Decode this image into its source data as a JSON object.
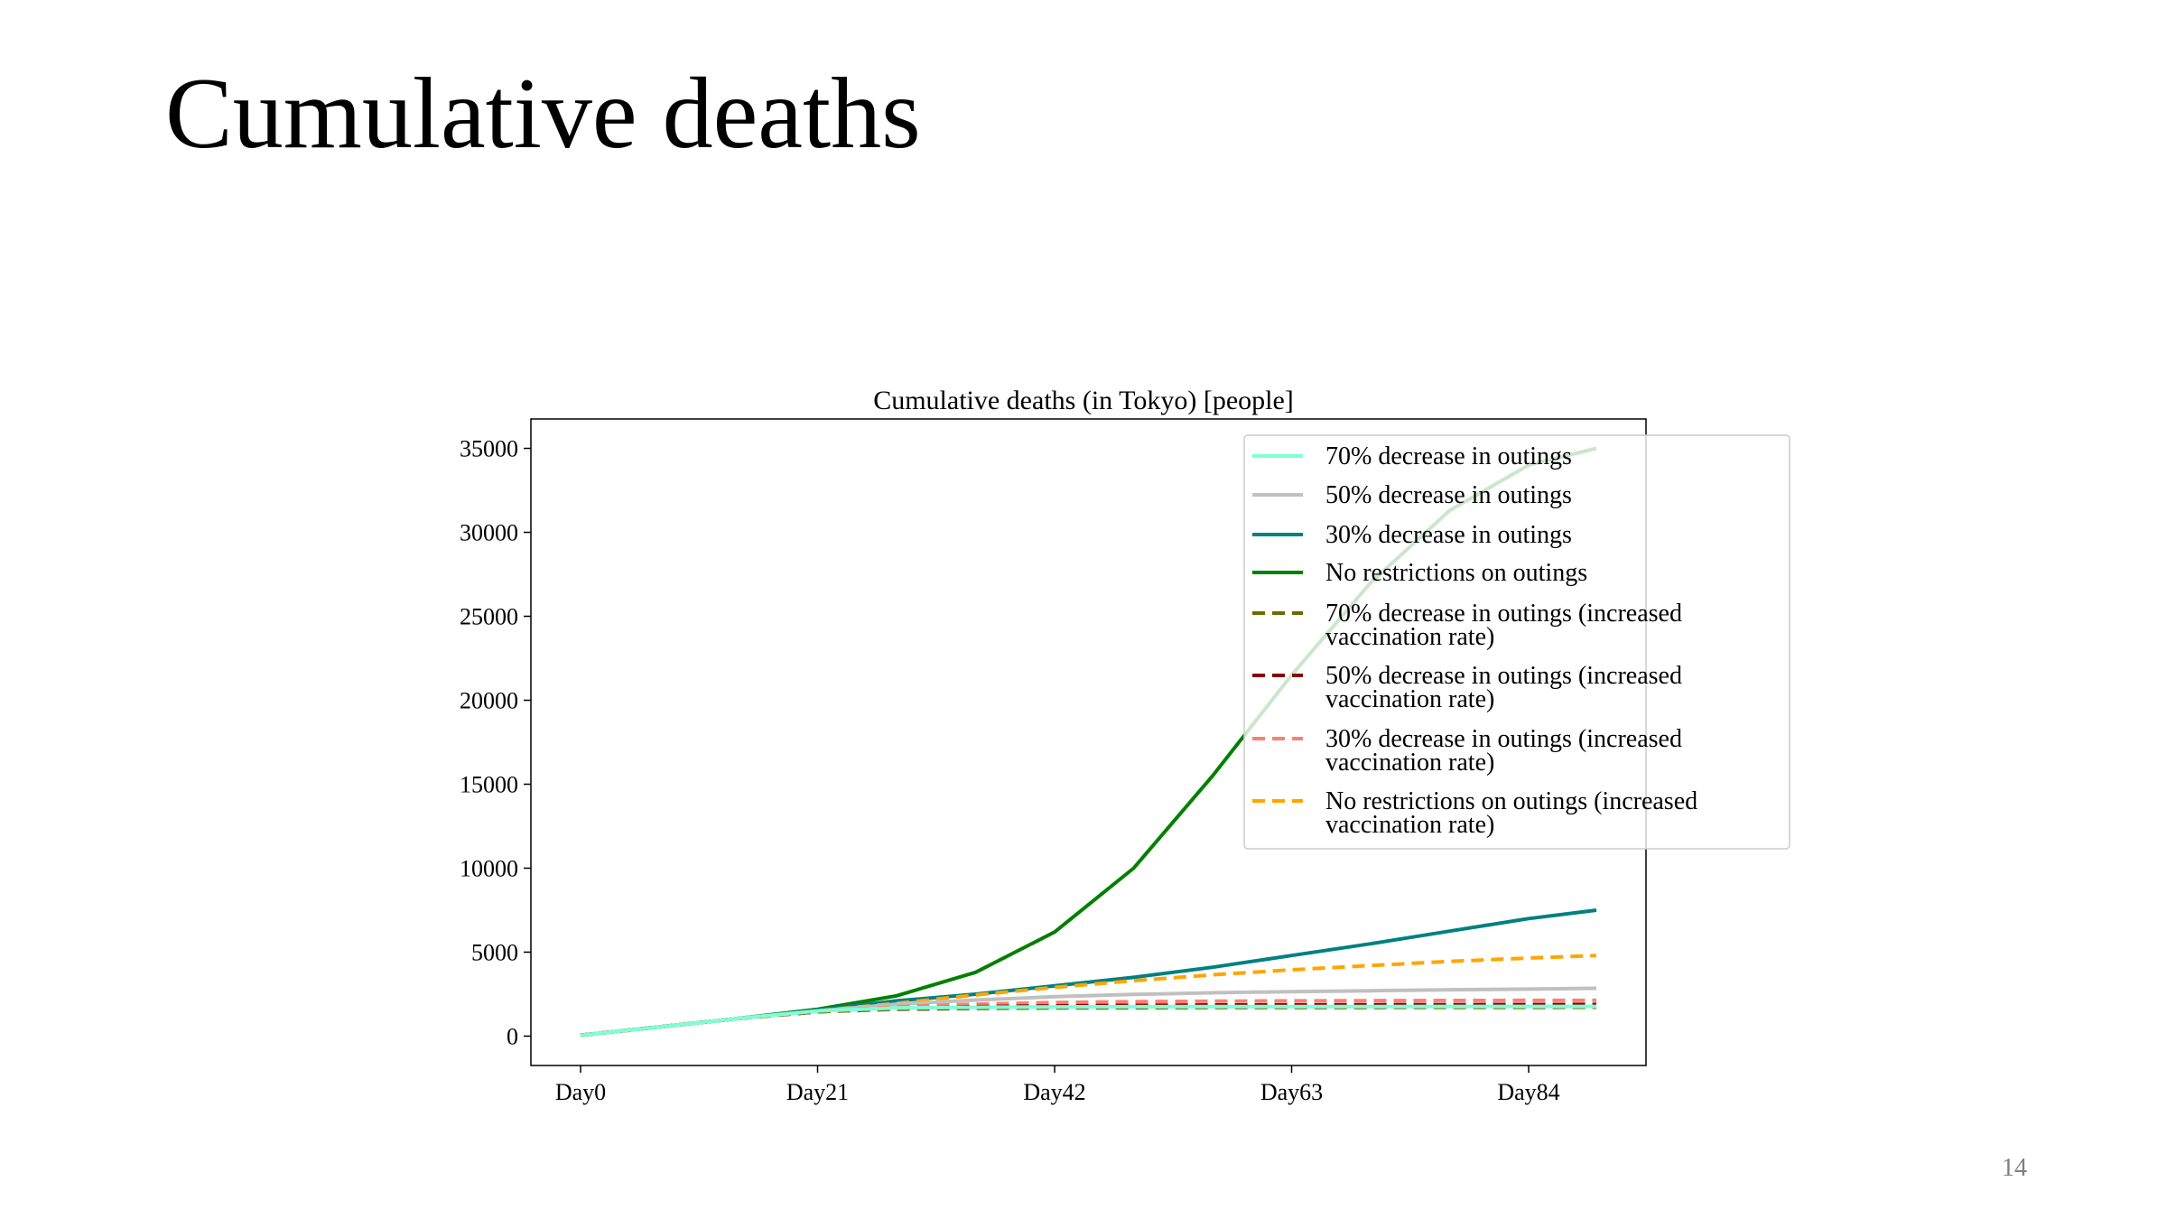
{
  "slide": {
    "title": "Cumulative deaths",
    "page_number": "14"
  },
  "chart_data": {
    "type": "line",
    "title": "Cumulative deaths (in Tokyo) [people]",
    "xlabel": "",
    "ylabel": "",
    "x": [
      0,
      7,
      14,
      21,
      28,
      35,
      42,
      49,
      56,
      63,
      70,
      77,
      84,
      90
    ],
    "x_ticks": [
      {
        "value": 0,
        "label": "Day0"
      },
      {
        "value": 21,
        "label": "Day21"
      },
      {
        "value": 42,
        "label": "Day42"
      },
      {
        "value": 63,
        "label": "Day63"
      },
      {
        "value": 84,
        "label": "Day84"
      }
    ],
    "y_ticks": [
      0,
      5000,
      10000,
      15000,
      20000,
      25000,
      30000,
      35000
    ],
    "xlim": [
      -4.4,
      94.4
    ],
    "ylim": [
      -1750,
      36750
    ],
    "grid": false,
    "legend_position": "top-right",
    "series": [
      {
        "name": "70% decrease in outings",
        "color": "#7fffd4",
        "dash": "solid",
        "values": [
          50,
          550,
          1050,
          1500,
          1680,
          1720,
          1740,
          1750,
          1755,
          1760,
          1762,
          1764,
          1766,
          1768
        ]
      },
      {
        "name": "50% decrease in outings",
        "color": "#c0c0c0",
        "dash": "solid",
        "values": [
          50,
          550,
          1050,
          1500,
          1900,
          2150,
          2350,
          2480,
          2580,
          2650,
          2700,
          2760,
          2800,
          2850
        ]
      },
      {
        "name": "30% decrease in outings",
        "color": "#008080",
        "dash": "solid",
        "values": [
          50,
          550,
          1050,
          1550,
          2100,
          2500,
          3000,
          3500,
          4100,
          4800,
          5500,
          6250,
          7000,
          7500
        ]
      },
      {
        "name": "No restrictions on outings",
        "color": "#008000",
        "dash": "solid",
        "values": [
          50,
          550,
          1050,
          1600,
          2400,
          3800,
          6200,
          10000,
          15500,
          21500,
          27000,
          31300,
          34000,
          35000
        ]
      },
      {
        "name": "70% decrease in outings (increased vaccination rate)",
        "color": "#6b6b00",
        "dash": "dashed",
        "values": [
          50,
          550,
          1050,
          1450,
          1600,
          1650,
          1680,
          1690,
          1700,
          1705,
          1710,
          1712,
          1714,
          1716
        ]
      },
      {
        "name": "50% decrease in outings (increased vaccination rate)",
        "color": "#8b0000",
        "dash": "dashed",
        "values": [
          50,
          550,
          1050,
          1450,
          1650,
          1750,
          1800,
          1830,
          1850,
          1860,
          1870,
          1875,
          1880,
          1885
        ]
      },
      {
        "name": "30% decrease in outings (increased vaccination rate)",
        "color": "#fa8072",
        "dash": "dashed",
        "values": [
          50,
          550,
          1050,
          1450,
          1750,
          1900,
          2000,
          2050,
          2080,
          2100,
          2110,
          2120,
          2125,
          2130
        ]
      },
      {
        "name": "No restrictions on outings (increased vaccination rate)",
        "color": "#ffa500",
        "dash": "dashed",
        "values": [
          50,
          550,
          1050,
          1500,
          1950,
          2450,
          2900,
          3300,
          3650,
          3950,
          4200,
          4450,
          4650,
          4800
        ]
      }
    ]
  }
}
